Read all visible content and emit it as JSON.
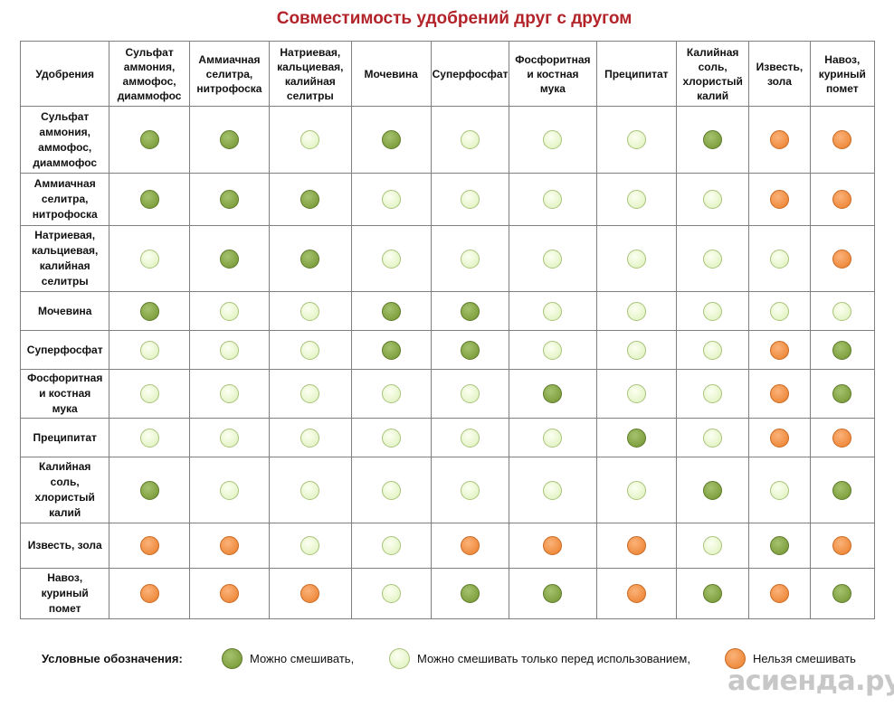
{
  "title": "Совместимость удобрений друг с другом",
  "corner_header": "Удобрения",
  "columns": [
    [
      "Сульфат",
      "аммония,",
      "аммофос,",
      "диаммофос"
    ],
    [
      "Аммиачная",
      "селитра,",
      "нитрофоска"
    ],
    [
      "Натриевая,",
      "кальциевая,",
      "калийная",
      "селитры"
    ],
    [
      "Мочевина"
    ],
    [
      "Суперфосфат"
    ],
    [
      "Фосфоритная",
      "и костная",
      "мука"
    ],
    [
      "Преципитат"
    ],
    [
      "Калийная",
      "соль,",
      "хлористый",
      "калий"
    ],
    [
      "Известь,",
      "зола"
    ],
    [
      "Навоз,",
      "куриный",
      "помет"
    ]
  ],
  "rows": [
    {
      "label": [
        "Сульфат",
        "аммония,",
        "аммофос,",
        "диаммофос"
      ],
      "cells": [
        "compatible",
        "compatible",
        "before_use",
        "compatible",
        "before_use",
        "before_use",
        "before_use",
        "compatible",
        "incompatible",
        "incompatible"
      ]
    },
    {
      "label": [
        "Аммиачная",
        "селитра,",
        "нитрофоска"
      ],
      "cells": [
        "compatible",
        "compatible",
        "compatible",
        "before_use",
        "before_use",
        "before_use",
        "before_use",
        "before_use",
        "incompatible",
        "incompatible"
      ]
    },
    {
      "label": [
        "Натриевая,",
        "кальциевая,",
        "калийная",
        "селитры"
      ],
      "cells": [
        "before_use",
        "compatible",
        "compatible",
        "before_use",
        "before_use",
        "before_use",
        "before_use",
        "before_use",
        "before_use",
        "incompatible"
      ]
    },
    {
      "label": [
        "Мочевина"
      ],
      "cells": [
        "compatible",
        "before_use",
        "before_use",
        "compatible",
        "compatible",
        "before_use",
        "before_use",
        "before_use",
        "before_use",
        "before_use"
      ]
    },
    {
      "label": [
        "Суперфосфат"
      ],
      "cells": [
        "before_use",
        "before_use",
        "before_use",
        "compatible",
        "compatible",
        "before_use",
        "before_use",
        "before_use",
        "incompatible",
        "compatible"
      ]
    },
    {
      "label": [
        "Фосфоритная",
        "и костная",
        "мука"
      ],
      "cells": [
        "before_use",
        "before_use",
        "before_use",
        "before_use",
        "before_use",
        "compatible",
        "before_use",
        "before_use",
        "incompatible",
        "compatible"
      ]
    },
    {
      "label": [
        "Преципитат"
      ],
      "cells": [
        "before_use",
        "before_use",
        "before_use",
        "before_use",
        "before_use",
        "before_use",
        "compatible",
        "before_use",
        "incompatible",
        "incompatible"
      ]
    },
    {
      "label": [
        "Калийная",
        "соль,",
        "хлористый",
        "калий"
      ],
      "cells": [
        "compatible",
        "before_use",
        "before_use",
        "before_use",
        "before_use",
        "before_use",
        "before_use",
        "compatible",
        "before_use",
        "compatible"
      ]
    },
    {
      "label": [
        "Известь, зола"
      ],
      "cells": [
        "incompatible",
        "incompatible",
        "before_use",
        "before_use",
        "incompatible",
        "incompatible",
        "incompatible",
        "before_use",
        "compatible",
        "incompatible"
      ]
    },
    {
      "label": [
        "Навоз,",
        "куриный",
        "помет"
      ],
      "cells": [
        "incompatible",
        "incompatible",
        "incompatible",
        "before_use",
        "compatible",
        "compatible",
        "incompatible",
        "compatible",
        "incompatible",
        "compatible"
      ]
    }
  ],
  "legend": {
    "title": "Условные обозначения:",
    "items": [
      {
        "key": "compatible",
        "label": "Можно смешивать,"
      },
      {
        "key": "before_use",
        "label": "Можно смешивать только перед использованием,"
      },
      {
        "key": "incompatible",
        "label": "Нельзя смешивать"
      }
    ]
  },
  "colors": {
    "compatible": "#7e9f3e",
    "before_use": "#e4f4c6",
    "incompatible": "#ee8a3c",
    "title": "#b3242a"
  },
  "watermark": {
    "text": "асиенда.ру",
    "icon": "leaf-logo-icon"
  }
}
